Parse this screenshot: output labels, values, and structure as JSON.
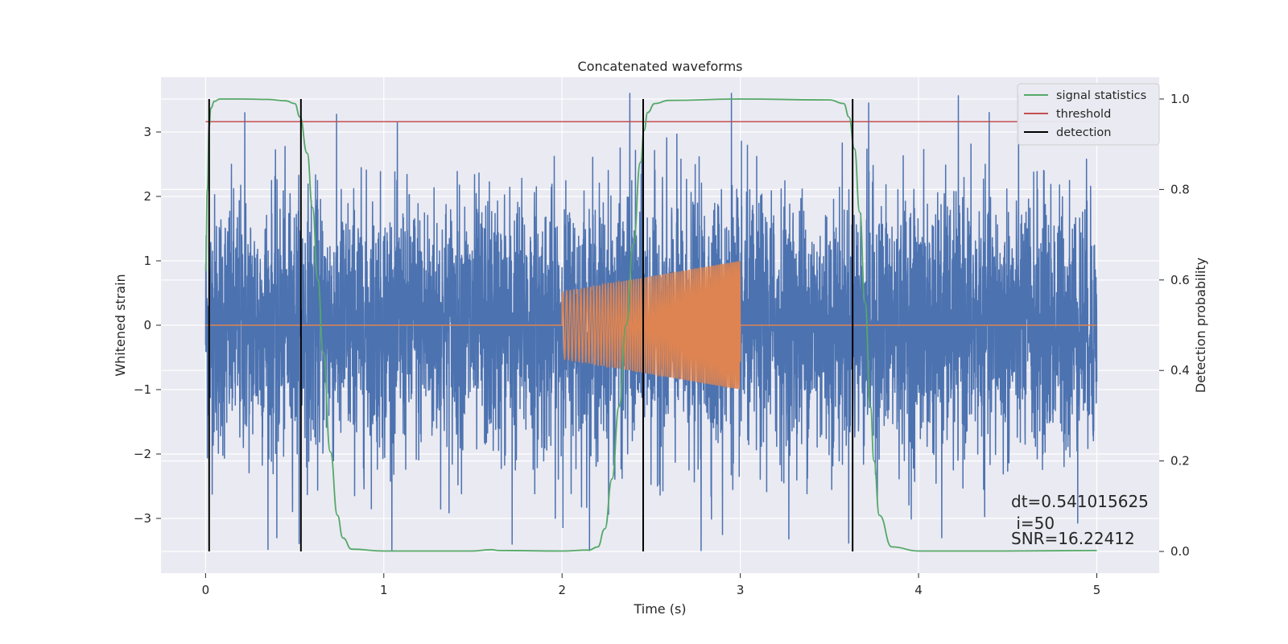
{
  "chart_data": {
    "type": "line",
    "title": "Concatenated waveforms",
    "xlabel": "Time (s)",
    "ylabel": "Whitened strain",
    "y2label": "Detection probability",
    "xlim": [
      -0.25,
      5.35
    ],
    "ylim": [
      -3.85,
      3.85
    ],
    "y2lim": [
      -0.048,
      1.048
    ],
    "x_ticks": [
      0,
      1,
      2,
      3,
      4,
      5
    ],
    "y_ticks": [
      -3,
      -2,
      -1,
      0,
      1,
      2,
      3
    ],
    "y_tick_labels": [
      "−3",
      "−2",
      "−1",
      "0",
      "1",
      "2",
      "3"
    ],
    "y2_ticks": [
      0.0,
      0.2,
      0.4,
      0.6,
      0.8,
      1.0
    ],
    "y2_tick_labels": [
      "0.0",
      "0.2",
      "0.4",
      "0.6",
      "0.8",
      "1.0"
    ],
    "grid": true,
    "legend_position": "top-right",
    "series": [
      {
        "name": "",
        "kind": "noise",
        "axis": "left",
        "color": "#4c72b0",
        "x_range": [
          0,
          5
        ],
        "sigma": 1.0,
        "envelope": [
          -3.5,
          3.6
        ],
        "peaks": [
          [
            0.22,
            3.3
          ],
          [
            2.38,
            3.6
          ],
          [
            2.95,
            3.6
          ],
          [
            3.72,
            3.45
          ],
          [
            0.4,
            -3.3
          ],
          [
            1.72,
            -3.4
          ],
          [
            2.78,
            -3.5
          ],
          [
            2.9,
            -3.25
          ],
          [
            4.13,
            -3.3
          ]
        ]
      },
      {
        "name": "",
        "kind": "chirp",
        "axis": "left",
        "color": "#dd8452",
        "x_range": [
          0,
          5
        ],
        "active_range": [
          2.0,
          3.0
        ],
        "amplitude_start": 0.52,
        "amplitude_end": 1.0,
        "freq_start": 45,
        "freq_end": 120
      },
      {
        "name": "signal statistics",
        "axis": "right",
        "color": "#55a868",
        "x": [
          0.0,
          0.01,
          0.02,
          0.03,
          0.05,
          0.08,
          0.12,
          0.2,
          0.35,
          0.45,
          0.5,
          0.53,
          0.57,
          0.6,
          0.63,
          0.66,
          0.7,
          0.74,
          0.77,
          0.82,
          1.0,
          1.5,
          1.6,
          1.65,
          2.0,
          2.15,
          2.2,
          2.24,
          2.28,
          2.32,
          2.36,
          2.4,
          2.44,
          2.46,
          2.48,
          2.52,
          2.6,
          3.0,
          3.5,
          3.58,
          3.61,
          3.64,
          3.67,
          3.7,
          3.73,
          3.75,
          3.78,
          3.85,
          4.0,
          4.5,
          5.0
        ],
        "y": [
          0.62,
          0.8,
          0.94,
          0.98,
          0.995,
          1.0,
          1.0,
          1.0,
          0.999,
          0.996,
          0.99,
          0.96,
          0.88,
          0.76,
          0.6,
          0.44,
          0.22,
          0.08,
          0.03,
          0.005,
          0.001,
          0.001,
          0.004,
          0.002,
          0.001,
          0.003,
          0.01,
          0.05,
          0.16,
          0.32,
          0.5,
          0.68,
          0.86,
          0.93,
          0.97,
          0.99,
          0.997,
          1.0,
          0.998,
          0.99,
          0.96,
          0.89,
          0.75,
          0.55,
          0.32,
          0.2,
          0.08,
          0.01,
          0.001,
          0.001,
          0.002
        ]
      },
      {
        "name": "threshold",
        "axis": "right",
        "color": "#c44e52",
        "x": [
          0,
          5
        ],
        "y": [
          0.95,
          0.95
        ]
      },
      {
        "name": "detection",
        "axis": "right",
        "color": "#000000",
        "vlines": [
          0.02,
          0.535,
          2.455,
          3.63
        ],
        "ymin": 0.0,
        "ymax": 1.0
      }
    ],
    "annotations": [
      "dt=0.541015625",
      " i=50",
      "SNR=16.22412"
    ]
  }
}
